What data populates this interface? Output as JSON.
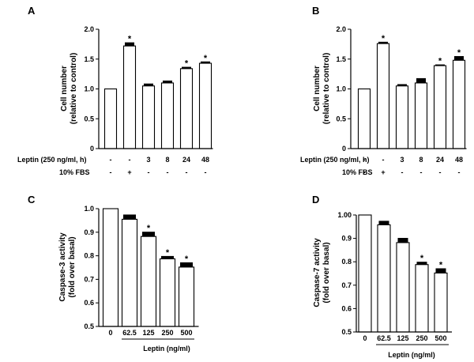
{
  "chart_data": [
    {
      "type": "bar",
      "panel": "A",
      "ylabel_lines": [
        "Cell number",
        "(relative to control)"
      ],
      "ylim": [
        0,
        2.0
      ],
      "yticks": [
        "0",
        "0.5",
        "1.0",
        "1.5",
        "2.0"
      ],
      "values": [
        1.0,
        1.72,
        1.05,
        1.1,
        1.34,
        1.43
      ],
      "errors": [
        0.0,
        0.06,
        0.04,
        0.04,
        0.03,
        0.03
      ],
      "significant": [
        false,
        true,
        false,
        false,
        true,
        true
      ],
      "star_label": "*",
      "condition_rows": [
        {
          "label": "Leptin (250 ng/ml, h)",
          "values": [
            "-",
            "-",
            "3",
            "8",
            "24",
            "48"
          ]
        },
        {
          "label": "10% FBS",
          "values": [
            "-",
            "+",
            "-",
            "-",
            "-",
            "-"
          ]
        }
      ]
    },
    {
      "type": "bar",
      "panel": "B",
      "ylabel_lines": [
        "Cell number",
        "(relative to control)"
      ],
      "ylim": [
        0,
        2.0
      ],
      "yticks": [
        "0",
        "0.5",
        "1.0",
        "1.5",
        "2.0"
      ],
      "values": [
        1.0,
        1.76,
        1.05,
        1.1,
        1.39,
        1.48
      ],
      "errors": [
        0.0,
        0.03,
        0.03,
        0.08,
        0.02,
        0.07
      ],
      "significant": [
        false,
        true,
        false,
        false,
        true,
        true
      ],
      "star_label": "*",
      "condition_rows": [
        {
          "label": "Leptin (250 ng/ml, h)",
          "values": [
            "-",
            "-",
            "3",
            "8",
            "24",
            "48"
          ]
        },
        {
          "label": "10% FBS",
          "values": [
            "-",
            "+",
            "-",
            "-",
            "-",
            "-"
          ]
        }
      ]
    },
    {
      "type": "bar",
      "panel": "C",
      "ylabel_lines": [
        "Caspase-3 activity",
        "(fold over basal)"
      ],
      "ylim": [
        0.5,
        1.0
      ],
      "yticks": [
        "0.5",
        "0.6",
        "0.7",
        "0.8",
        "0.9",
        "1.0"
      ],
      "categories": [
        "0",
        "62.5",
        "125",
        "250",
        "500"
      ],
      "values": [
        1.0,
        0.955,
        0.882,
        0.787,
        0.752
      ],
      "errors": [
        0.0,
        0.02,
        0.02,
        0.012,
        0.02
      ],
      "significant": [
        false,
        false,
        true,
        true,
        true
      ],
      "star_label": "*",
      "xlabel": "Leptin (ng/ml)"
    },
    {
      "type": "bar",
      "panel": "D",
      "ylabel_lines": [
        "Caspase-7 activity",
        "(fold over basal)"
      ],
      "ylim": [
        0.5,
        1.0
      ],
      "yticks": [
        "0.5",
        "0.6",
        "0.7",
        "0.8",
        "0.9",
        "1.0"
      ],
      "ytick_format": [
        "0.5",
        "0.6",
        "0.7",
        "0.8",
        "0.9",
        "1.00"
      ],
      "categories": [
        "0",
        "62.5",
        "125",
        "250",
        "500"
      ],
      "values": [
        1.0,
        0.958,
        0.882,
        0.788,
        0.752
      ],
      "errors": [
        0.0,
        0.017,
        0.02,
        0.012,
        0.02
      ],
      "significant": [
        false,
        false,
        false,
        true,
        true
      ],
      "star_label": "*",
      "xlabel": "Leptin (ng/ml)"
    }
  ]
}
